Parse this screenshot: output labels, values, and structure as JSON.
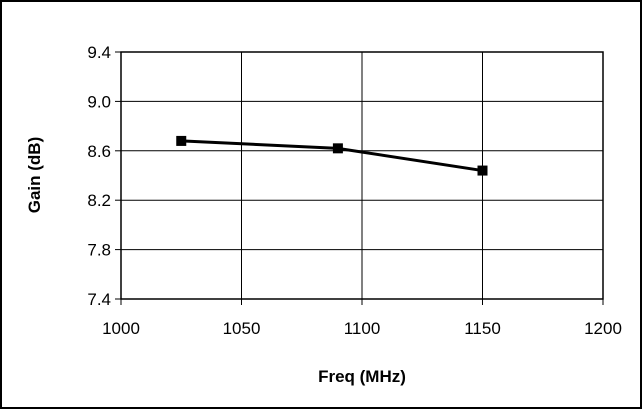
{
  "chart_data": {
    "type": "line",
    "xlabel": "Freq (MHz)",
    "ylabel": "Gain (dB)",
    "xlim": [
      1000,
      1200
    ],
    "ylim": [
      7.4,
      9.4
    ],
    "x_ticks": [
      "1000",
      "1050",
      "1100",
      "1150",
      "1200"
    ],
    "y_ticks": [
      "9.4",
      "9.0",
      "8.6",
      "8.2",
      "7.8",
      "7.4"
    ],
    "grid": true,
    "legend": "none",
    "series": [
      {
        "x": [
          1025,
          1090,
          1150
        ],
        "y": [
          8.68,
          8.62,
          8.44
        ],
        "color": "#000000",
        "marker": "square"
      }
    ]
  }
}
